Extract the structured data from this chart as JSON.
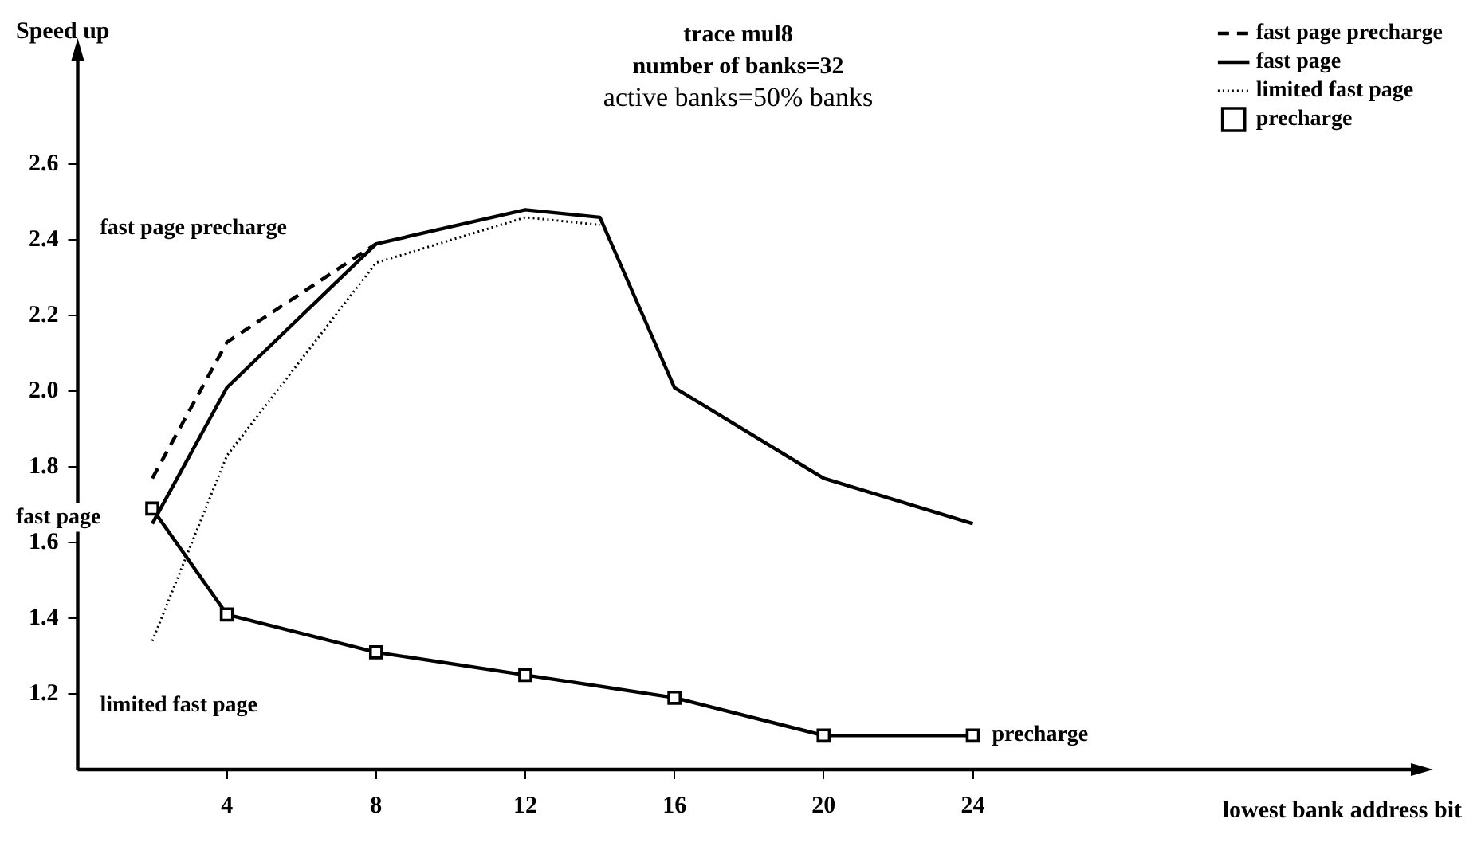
{
  "chart_data": {
    "type": "line",
    "title": "trace mul8",
    "subtitle": "number of banks=32",
    "xlabel": "lowest bank address bit",
    "ylabel": "Speed up",
    "xlim": [
      0,
      36
    ],
    "xticks": [
      4,
      8,
      12,
      16,
      20,
      24
    ],
    "ylim": [
      1.0,
      2.9
    ],
    "yticks": [
      1.2,
      1.4,
      1.6,
      1.8,
      {
        "value": 2.0,
        "label": "2.0"
      },
      2.2,
      2.4,
      2.6
    ],
    "grid": false,
    "legend": "top right",
    "series": [
      {
        "name": "fast page precharge",
        "color": "#000000",
        "line_style": "dashed",
        "marker": "none",
        "x": [
          2,
          4,
          8
        ],
        "values": [
          1.77,
          2.13,
          2.39
        ]
      },
      {
        "name": "fast page",
        "color": "#000000",
        "line_style": "solid",
        "marker": "none",
        "x": [
          2,
          4,
          8,
          12,
          14,
          16,
          20,
          24
        ],
        "values": [
          1.65,
          2.01,
          2.39,
          2.48,
          2.46,
          2.01,
          1.77,
          1.65
        ]
      },
      {
        "name": "limited fast page",
        "color": "#000000",
        "line_style": "dotted",
        "marker": "none",
        "x": [
          2,
          4,
          8,
          12,
          14
        ],
        "values": [
          1.34,
          1.83,
          2.34,
          2.46,
          2.44
        ]
      },
      {
        "name": "precharge",
        "color": "#000000",
        "line_style": "solid",
        "marker": "square",
        "x": [
          2,
          4,
          8,
          12,
          16,
          20,
          24
        ],
        "values": [
          1.69,
          1.41,
          1.31,
          1.25,
          1.19,
          1.09,
          1.09
        ]
      }
    ],
    "annotations": [
      "active banks=50% banks",
      "fast page precharge",
      "fast page",
      "limited fast page",
      "precharge"
    ]
  }
}
